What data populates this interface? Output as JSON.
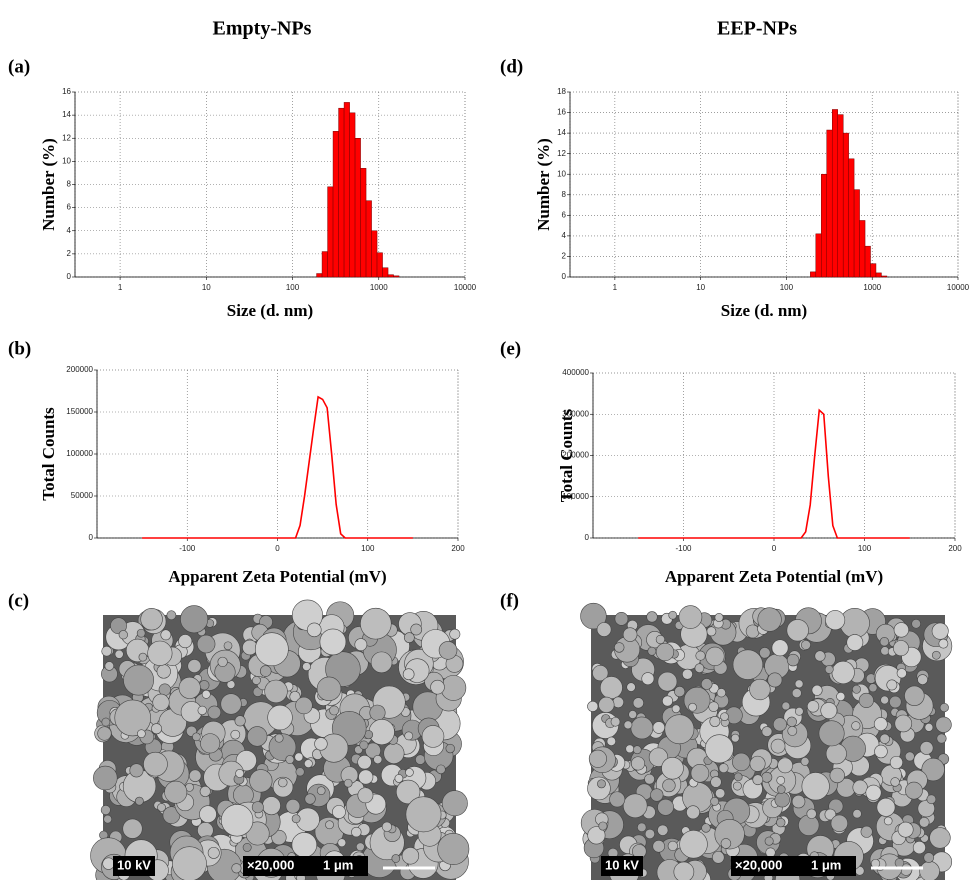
{
  "column_titles": [
    "Empty-NPs",
    "EEP-NPs"
  ],
  "panel_labels": [
    "(a)",
    "(b)",
    "(c)",
    "(d)",
    "(e)",
    "(f)"
  ],
  "sem_images": [
    {
      "voltage": "10 kV",
      "magnification": "×20,000",
      "scale": "1 μm"
    },
    {
      "voltage": "10 kV",
      "magnification": "×20,000",
      "scale": "1 μm"
    }
  ],
  "chart_data": [
    {
      "type": "histogram",
      "x_label": "Size (d. nm)",
      "y_label": "Number (%)",
      "xscale": "log",
      "grid": true,
      "color": "#ff0000",
      "bins": [
        190,
        220,
        255,
        295,
        342,
        396,
        459,
        531,
        615,
        712,
        825,
        955,
        1106,
        1281,
        1484,
        1718
      ],
      "values": [
        0.3,
        2.2,
        7.8,
        12.6,
        14.6,
        15.1,
        14.2,
        12.0,
        9.4,
        6.6,
        4.0,
        2.1,
        0.8,
        0.2,
        0.1
      ],
      "xlim": [
        0.3,
        10000
      ],
      "xticks": [
        1,
        10,
        100,
        1000,
        10000
      ],
      "ylim": [
        0,
        16
      ],
      "yticks": [
        0,
        2,
        4,
        6,
        8,
        10,
        12,
        14,
        16
      ]
    },
    {
      "type": "line",
      "x_label": "Apparent Zeta Potential (mV)",
      "y_label": "Total Counts",
      "grid": true,
      "color": "#ff0000",
      "x": [
        -150,
        20,
        25,
        30,
        35,
        40,
        45,
        50,
        55,
        60,
        65,
        70,
        75,
        150
      ],
      "values": [
        0,
        0,
        15000,
        50000,
        90000,
        130000,
        168000,
        165000,
        155000,
        100000,
        40000,
        5000,
        0,
        0
      ],
      "xlim": [
        -200,
        200
      ],
      "xticks": [
        -100,
        0,
        100,
        200
      ],
      "ylim": [
        0,
        200000
      ],
      "yticks": [
        0,
        50000,
        100000,
        150000,
        200000
      ]
    },
    {
      "type": "histogram",
      "x_label": "Size (d. nm)",
      "y_label": "Number (%)",
      "xscale": "log",
      "grid": true,
      "color": "#ff0000",
      "bins": [
        190,
        220,
        255,
        295,
        342,
        396,
        459,
        531,
        615,
        712,
        825,
        955,
        1106,
        1281,
        1484,
        1718
      ],
      "values": [
        0.5,
        4.2,
        10.0,
        14.3,
        16.3,
        15.8,
        14.0,
        11.5,
        8.5,
        5.5,
        3.0,
        1.3,
        0.4,
        0.1,
        0
      ],
      "xlim": [
        0.3,
        10000
      ],
      "xticks": [
        1,
        10,
        100,
        1000,
        10000
      ],
      "ylim": [
        0,
        18
      ],
      "yticks": [
        0,
        2,
        4,
        6,
        8,
        10,
        12,
        14,
        16,
        18
      ]
    },
    {
      "type": "line",
      "x_label": "Apparent Zeta Potential (mV)",
      "y_label": "Total Counts",
      "grid": true,
      "color": "#ff0000",
      "x": [
        -150,
        30,
        35,
        40,
        45,
        50,
        55,
        60,
        65,
        70,
        150
      ],
      "values": [
        0,
        0,
        15000,
        80000,
        200000,
        310000,
        300000,
        150000,
        30000,
        0,
        0
      ],
      "xlim": [
        -200,
        200
      ],
      "xticks": [
        -100,
        0,
        100,
        200
      ],
      "ylim": [
        0,
        400000
      ],
      "yticks": [
        0,
        100000,
        200000,
        300000,
        400000
      ]
    }
  ]
}
